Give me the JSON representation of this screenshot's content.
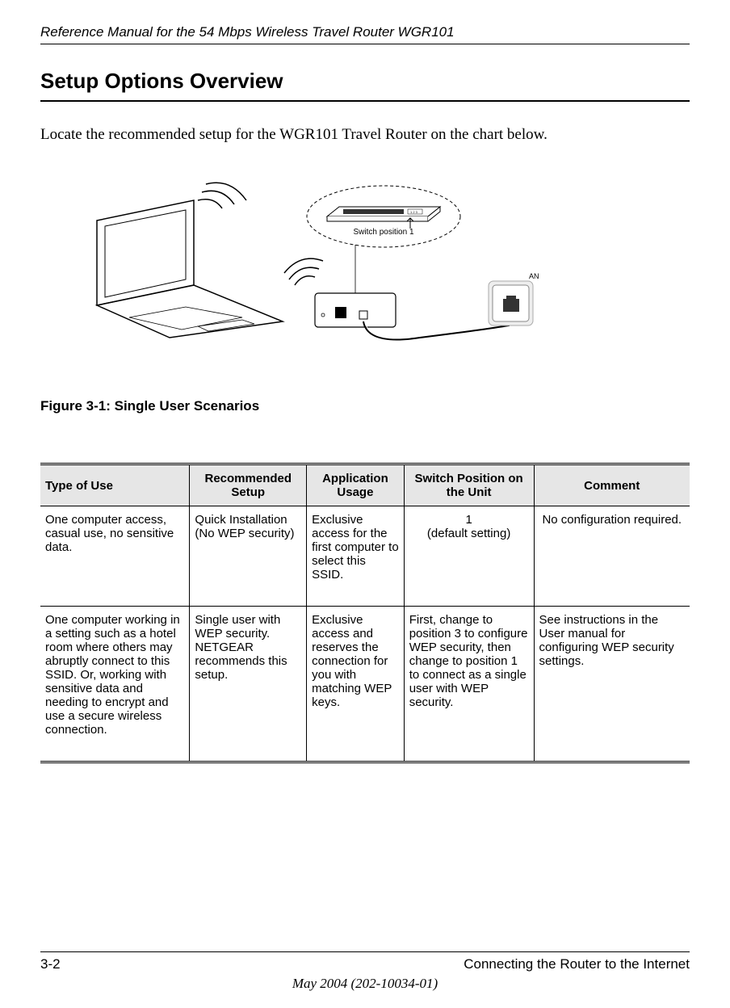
{
  "header": {
    "title": "Reference Manual for the 54 Mbps Wireless Travel Router WGR101"
  },
  "section": {
    "title": "Setup Options Overview",
    "body": "Locate the recommended setup for the WGR101 Travel Router on the chart below."
  },
  "figure": {
    "caption": "Figure 3-1:  Single User Scenarios",
    "switch_label": "Switch position 1",
    "an_label": "AN"
  },
  "table": {
    "columns": [
      "Type of Use",
      "Recommended Setup",
      "Application Usage",
      "Switch Position on the Unit",
      "Comment"
    ],
    "col_widths": [
      "23%",
      "18%",
      "15%",
      "20%",
      "24%"
    ],
    "rows": [
      {
        "type_of_use": "One computer access, casual use, no sensitive data.",
        "recommended_setup": "Quick Installation (No WEP security)",
        "application_usage": "Exclusive access for the first computer to select this SSID.",
        "switch_position": "1\n(default setting)",
        "switch_position_line1": "1",
        "switch_position_line2": "(default setting)",
        "comment": "No configuration required.",
        "comment_align": "center",
        "switch_align": "center"
      },
      {
        "type_of_use": "One computer working in a setting such as a hotel room where others may abruptly connect to this SSID. Or, working with sensitive data and needing to encrypt and use a secure wireless connection.",
        "recommended_setup": "Single user with WEP security. NETGEAR recommends this setup.",
        "application_usage": "Exclusive access and reserves the connection for you with matching WEP keys.",
        "switch_position": "First, change to position 3 to configure WEP security, then change to position 1 to connect as a single user with WEP security.",
        "comment": "See instructions in the User manual for configuring WEP security settings.",
        "comment_align": "left",
        "switch_align": "left"
      }
    ]
  },
  "footer": {
    "page_number": "3-2",
    "chapter": "Connecting the Router to the Internet",
    "date": "May 2004 (202-10034-01)"
  }
}
